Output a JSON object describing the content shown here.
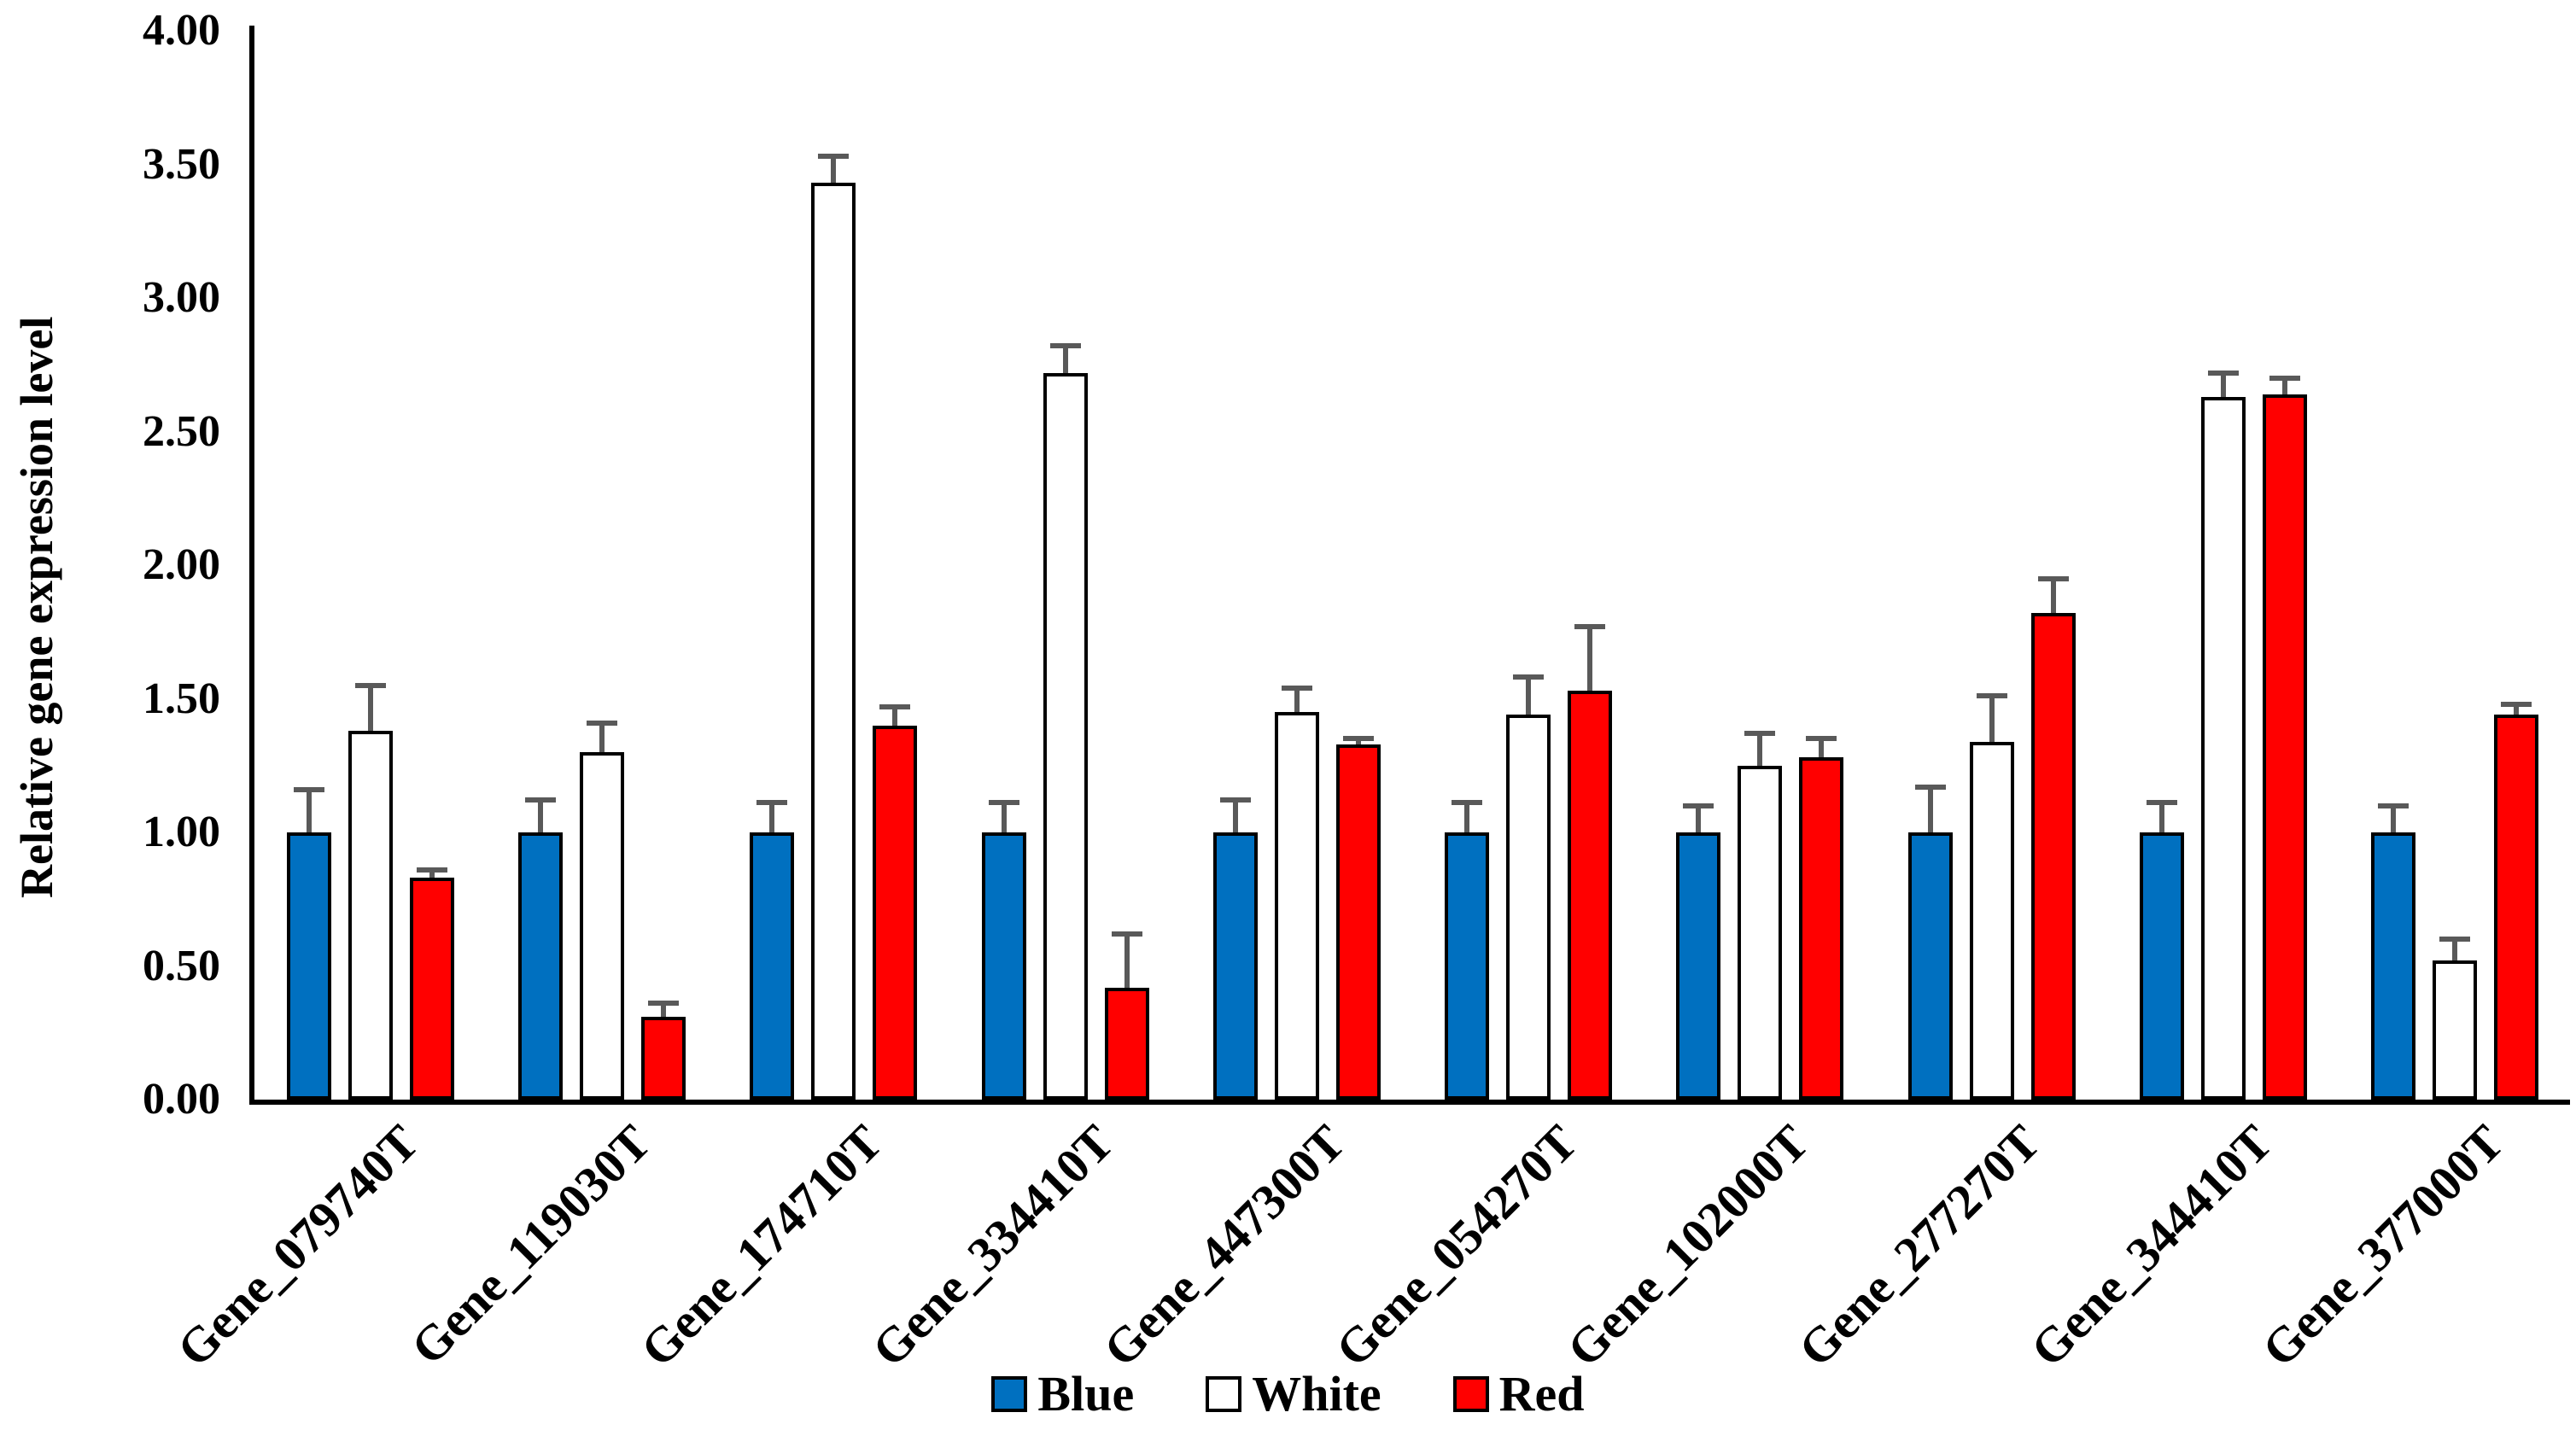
{
  "figure": {
    "background": "#FFFFFF",
    "accent_blue": "#0070C0",
    "accent_red": "#FF0000",
    "error_bar_color": "#595959",
    "bar_border_color": "#000000"
  },
  "y_axis": {
    "label": "Relative gene expression level",
    "tick_labels": [
      "4.00",
      "3.50",
      "3.00",
      "2.50",
      "2.00",
      "1.50",
      "1.00",
      "0.50",
      "0.00"
    ],
    "min": 0,
    "max": 4,
    "step": 0.5
  },
  "legend": {
    "items": [
      {
        "label": "Blue",
        "color": "#0070C0"
      },
      {
        "label": "White",
        "color": "#FFFFFF"
      },
      {
        "label": "Red",
        "color": "#FF0000"
      }
    ]
  },
  "chart_data": {
    "type": "bar",
    "title": "",
    "xlabel": "",
    "ylabel": "Relative gene expression level",
    "ylim": [
      0,
      4
    ],
    "ytick_step": 0.5,
    "grid": false,
    "legend_position": "bottom",
    "error_bars": "plus_direction_only",
    "categories": [
      "Gene_079740T",
      "Gene_119030T",
      "Gene_174710T",
      "Gene_334410T",
      "Gene_447300T",
      "Gene_054270T",
      "Gene_102000T",
      "Gene_277270T",
      "Gene_344410T",
      "Gene_377000T"
    ],
    "series": [
      {
        "name": "Blue",
        "color": "#0070C0",
        "values": [
          1.0,
          1.0,
          1.0,
          1.0,
          1.0,
          1.0,
          1.0,
          1.0,
          1.0,
          1.0
        ],
        "errors": [
          0.17,
          0.13,
          0.12,
          0.12,
          0.13,
          0.12,
          0.11,
          0.18,
          0.12,
          0.11
        ]
      },
      {
        "name": "White",
        "color": "#FFFFFF",
        "values": [
          1.38,
          1.3,
          3.43,
          2.72,
          1.45,
          1.44,
          1.25,
          1.34,
          2.63,
          0.52
        ],
        "errors": [
          0.18,
          0.12,
          0.11,
          0.11,
          0.1,
          0.15,
          0.13,
          0.18,
          0.1,
          0.09
        ]
      },
      {
        "name": "Red",
        "color": "#FF0000",
        "values": [
          0.83,
          0.31,
          1.4,
          0.42,
          1.33,
          1.53,
          1.28,
          1.82,
          2.64,
          1.44
        ],
        "errors": [
          0.04,
          0.06,
          0.08,
          0.21,
          0.03,
          0.25,
          0.08,
          0.14,
          0.07,
          0.05
        ]
      }
    ]
  }
}
